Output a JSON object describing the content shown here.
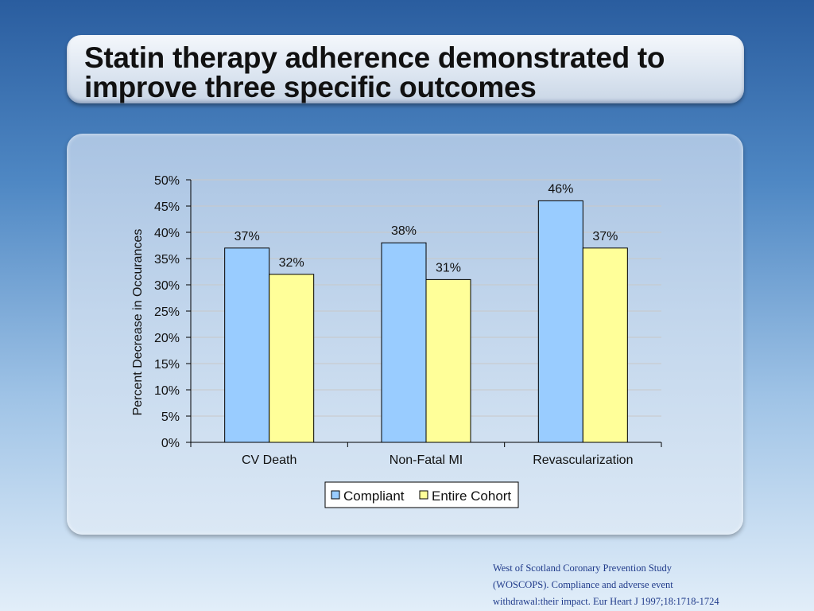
{
  "slide": {
    "title_line1": "Statin therapy adherence demonstrated to",
    "title_line2": "improve three specific outcomes",
    "citation_line1": "West of Scotland Coronary Prevention Study",
    "citation_line2": "(WOSCOPS). Compliance and adverse event",
    "citation_line3": "withdrawal:their impact. Eur Heart J 1997;18:1718-1724"
  },
  "colors": {
    "compliant": "#99ccff",
    "entire_cohort": "#ffff99",
    "gridline": "#c8c8c8"
  },
  "chart_data": {
    "type": "bar",
    "title": "",
    "xlabel": "",
    "ylabel": "Percent Decrease in Occurances",
    "categories": [
      "CV Death",
      "Non-Fatal MI",
      "Revascularization"
    ],
    "series": [
      {
        "name": "Compliant",
        "values": [
          37,
          38,
          46
        ],
        "labels": [
          "37%",
          "38%",
          "46%"
        ]
      },
      {
        "name": "Entire Cohort",
        "values": [
          32,
          31,
          37
        ],
        "labels": [
          "32%",
          "31%",
          "37%"
        ]
      }
    ],
    "ylim": [
      0,
      50
    ],
    "yticks": [
      0,
      5,
      10,
      15,
      20,
      25,
      30,
      35,
      40,
      45,
      50
    ],
    "ytick_labels": [
      "0%",
      "5%",
      "10%",
      "15%",
      "20%",
      "25%",
      "30%",
      "35%",
      "40%",
      "45%",
      "50%"
    ],
    "grid": true,
    "legend_position": "bottom"
  }
}
